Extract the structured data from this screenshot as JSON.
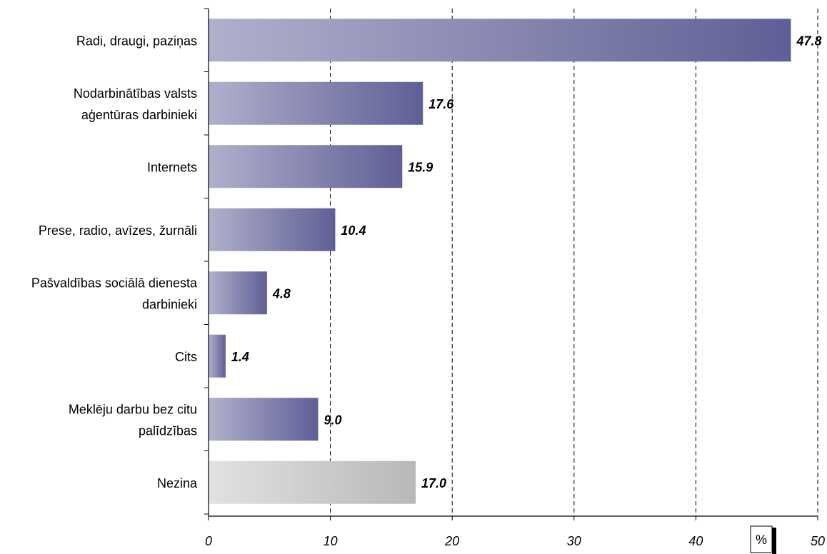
{
  "chart_data": {
    "type": "bar",
    "orientation": "horizontal",
    "title": "",
    "xlabel": "",
    "ylabel": "",
    "unit_label": "%",
    "categories": [
      [
        "Radi, draugi, paziņas"
      ],
      [
        "Nodarbinātības valsts",
        "aģentūras darbinieki"
      ],
      [
        "Internets"
      ],
      [
        "Prese, radio, avīzes, žurnāli"
      ],
      [
        "Pašvaldības sociālā dienesta",
        "darbinieki"
      ],
      [
        "Cits"
      ],
      [
        "Meklēju darbu bez citu",
        "palīdzības"
      ],
      [
        "Nezina"
      ]
    ],
    "values": [
      47.8,
      17.6,
      15.9,
      10.4,
      4.8,
      1.4,
      9.0,
      17.0
    ],
    "value_labels": [
      "47.8",
      "17.6",
      "15.9",
      "10.4",
      "4.8",
      "1.4",
      "9.0",
      "17.0"
    ],
    "xlim": [
      0,
      50
    ],
    "x_ticks": [
      0,
      10,
      20,
      30,
      40,
      50
    ],
    "x_tick_labels": [
      "0",
      "10",
      "20",
      "30",
      "40",
      "50"
    ],
    "grid": "vertical dashed",
    "legend": "none",
    "colors": {
      "bar_gradient_start": "#b0b0cc",
      "bar_gradient_end": "#5f5f96",
      "gray_bar_start": "#e2e2e2",
      "gray_bar_end": "#b8b8b8",
      "gray_category_index": 7
    }
  }
}
